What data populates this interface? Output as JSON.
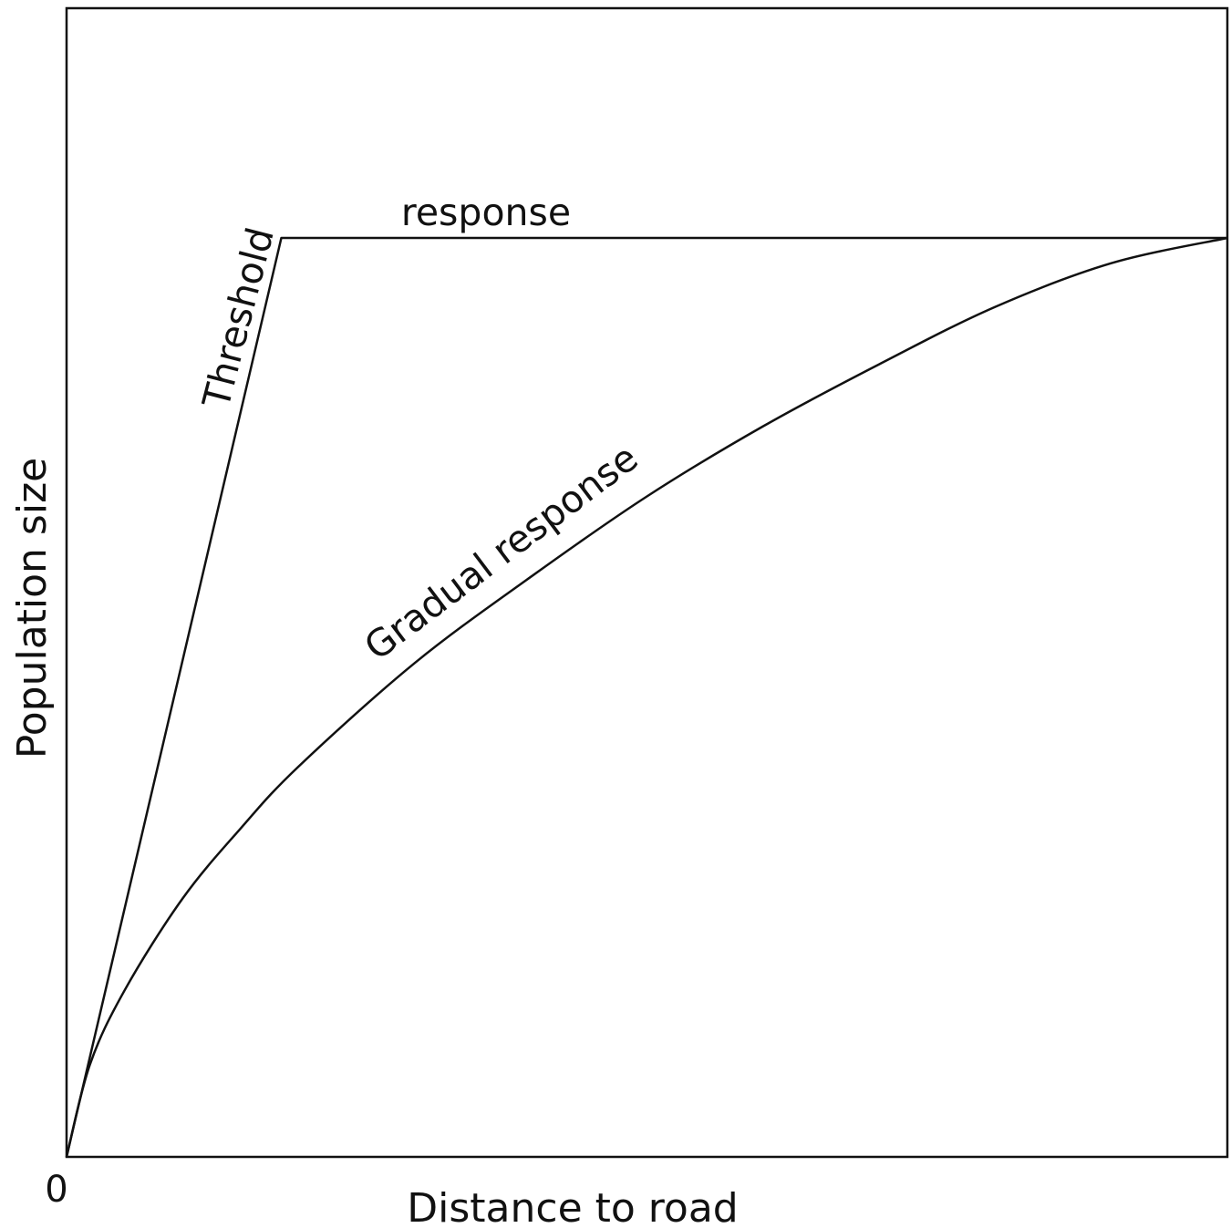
{
  "chart_data": {
    "type": "line",
    "title": "",
    "xlabel": "Distance to road",
    "ylabel": "Population size",
    "x_tick_labels": [
      "0"
    ],
    "xlim": [
      0,
      1
    ],
    "ylim": [
      0,
      1
    ],
    "grid": false,
    "legend": "none",
    "series": [
      {
        "name": "Threshold response",
        "label_parts": [
          "Threshold",
          "response"
        ],
        "x": [
          0,
          0.185,
          1.0
        ],
        "y": [
          0,
          0.8,
          0.8
        ]
      },
      {
        "name": "Gradual response",
        "label_parts": [
          "Gradual response"
        ],
        "x": [
          0,
          0.02,
          0.05,
          0.1,
          0.15,
          0.2,
          0.3,
          0.4,
          0.5,
          0.6,
          0.7,
          0.8,
          0.9,
          1.0
        ],
        "y": [
          0,
          0.08,
          0.145,
          0.225,
          0.286,
          0.34,
          0.43,
          0.505,
          0.575,
          0.636,
          0.69,
          0.74,
          0.778,
          0.8
        ]
      }
    ],
    "colors": {
      "line": "#111111",
      "frame": "#111111",
      "background": "#ffffff"
    }
  }
}
